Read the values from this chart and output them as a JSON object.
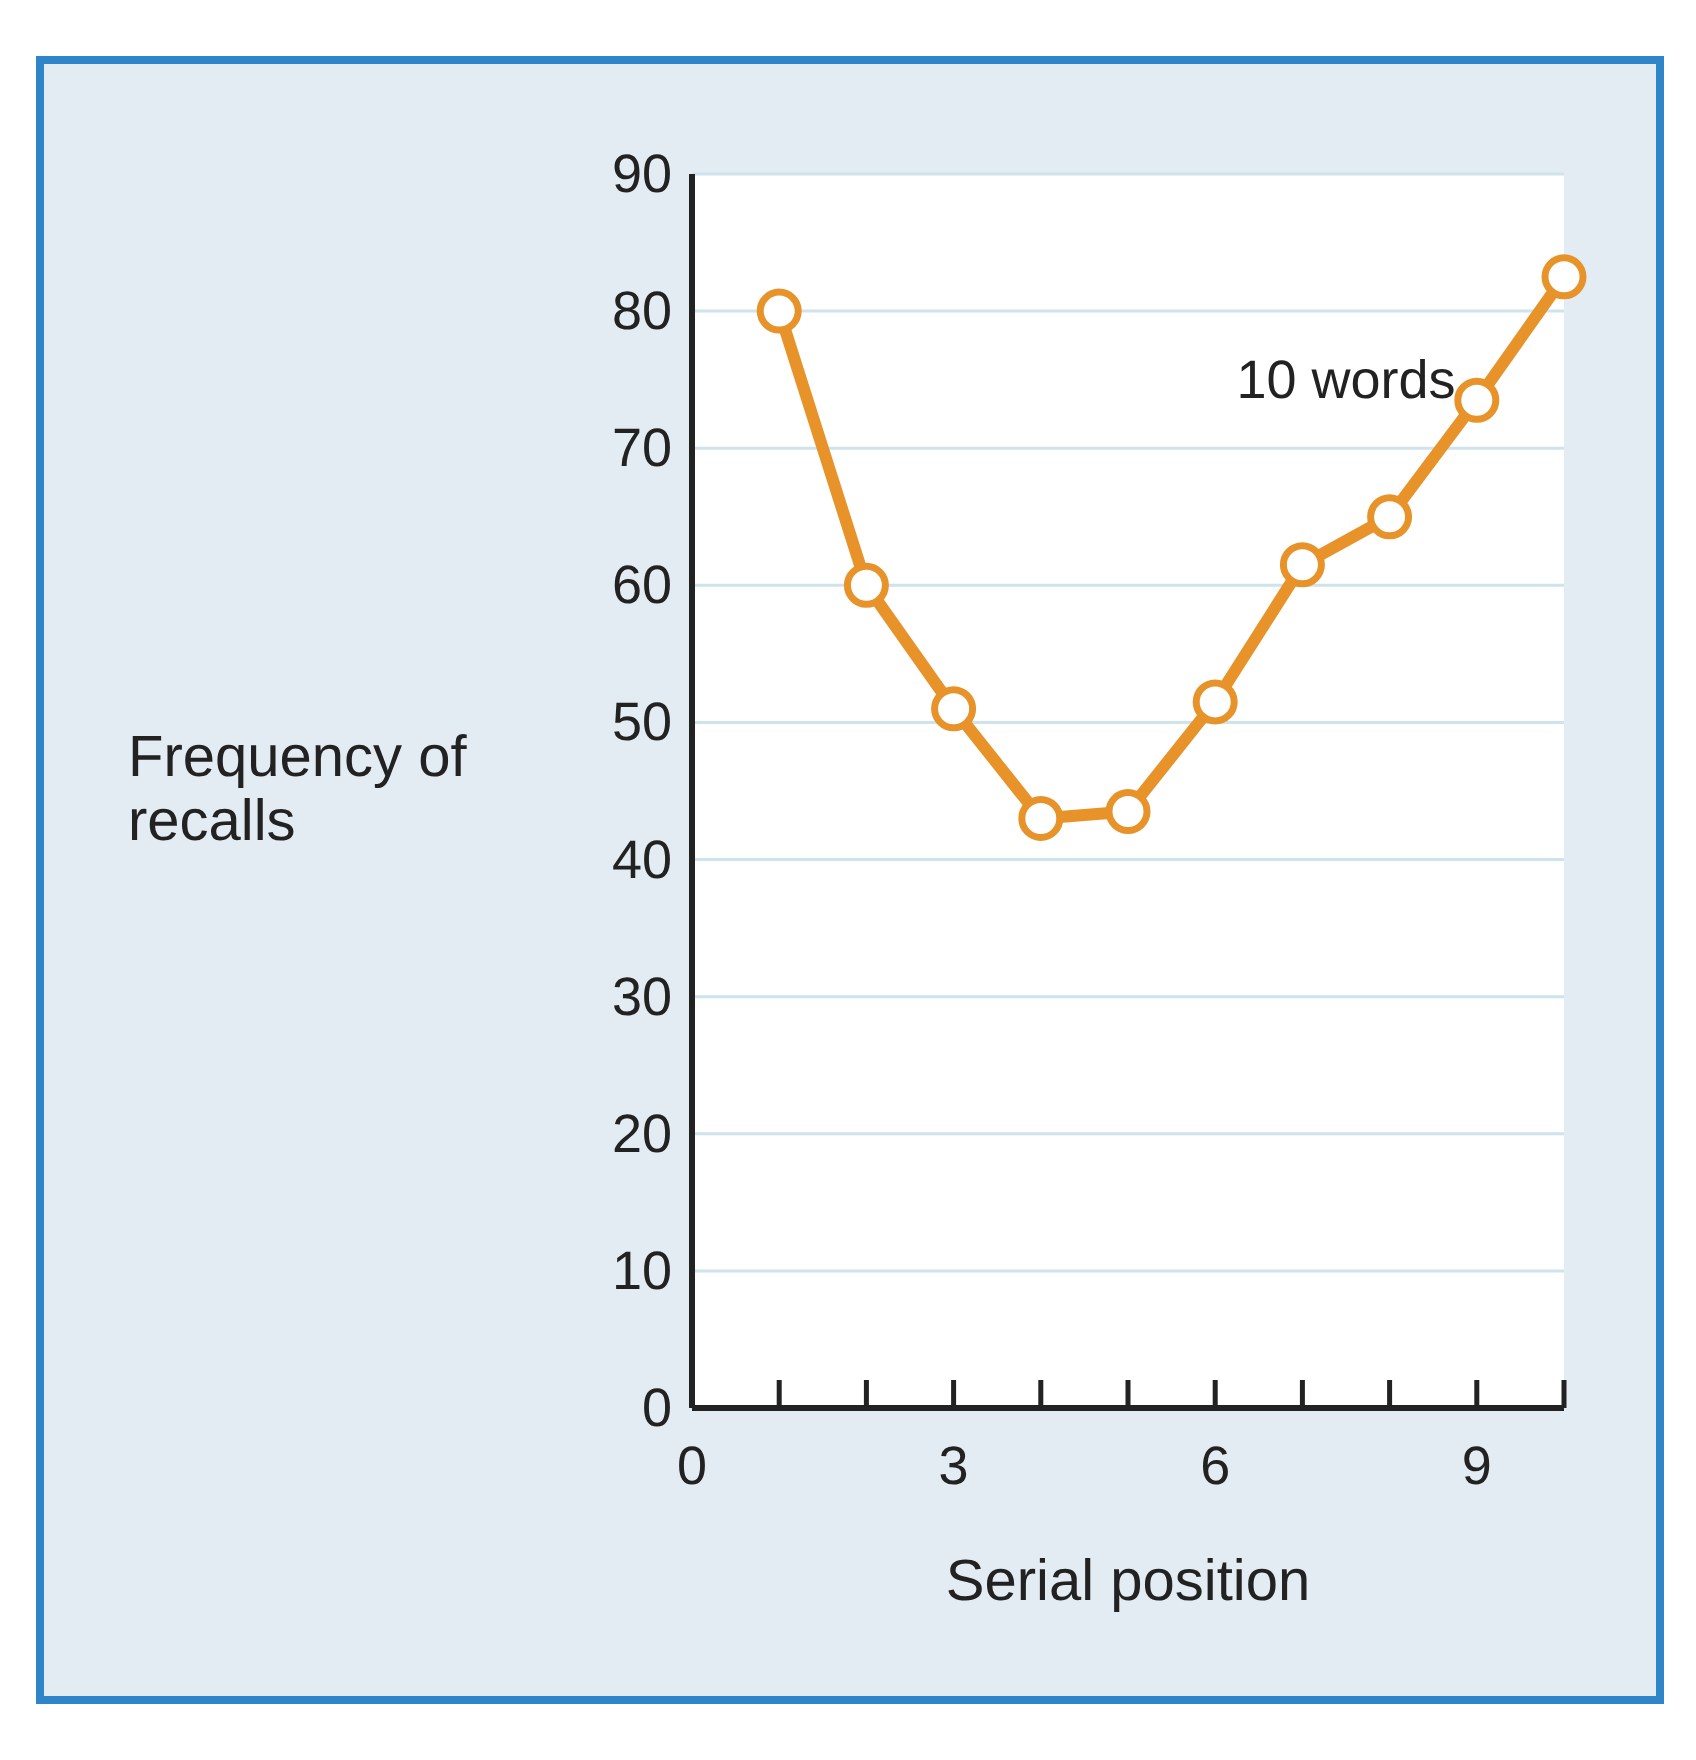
{
  "chart_data": {
    "type": "line",
    "xlabel": "Serial position",
    "ylabel": "Frequency of recalls",
    "x": [
      1,
      2,
      3,
      4,
      5,
      6,
      7,
      8,
      9,
      10
    ],
    "series": [
      {
        "color": "#e8932a",
        "values": [
          80,
          60,
          51,
          43,
          43.5,
          51.5,
          61.5,
          65,
          73.5,
          82.5
        ]
      }
    ],
    "xlim": [
      0,
      10
    ],
    "xticks": [
      0,
      {
        "value": 1,
        "label": null
      },
      {
        "value": 2,
        "label": null
      },
      3,
      {
        "value": 4,
        "label": null
      },
      {
        "value": 5,
        "label": null
      },
      6,
      {
        "value": 7,
        "label": null
      },
      {
        "value": 8,
        "label": null
      },
      9,
      {
        "value": 10,
        "label": null
      }
    ],
    "ylim": [
      0,
      90
    ],
    "yticks": [
      0,
      10,
      20,
      30,
      40,
      50,
      60,
      70,
      80,
      90
    ],
    "grid": "y",
    "marker": "circle",
    "line_style": "solid",
    "annotations": [
      "10 words"
    ]
  }
}
